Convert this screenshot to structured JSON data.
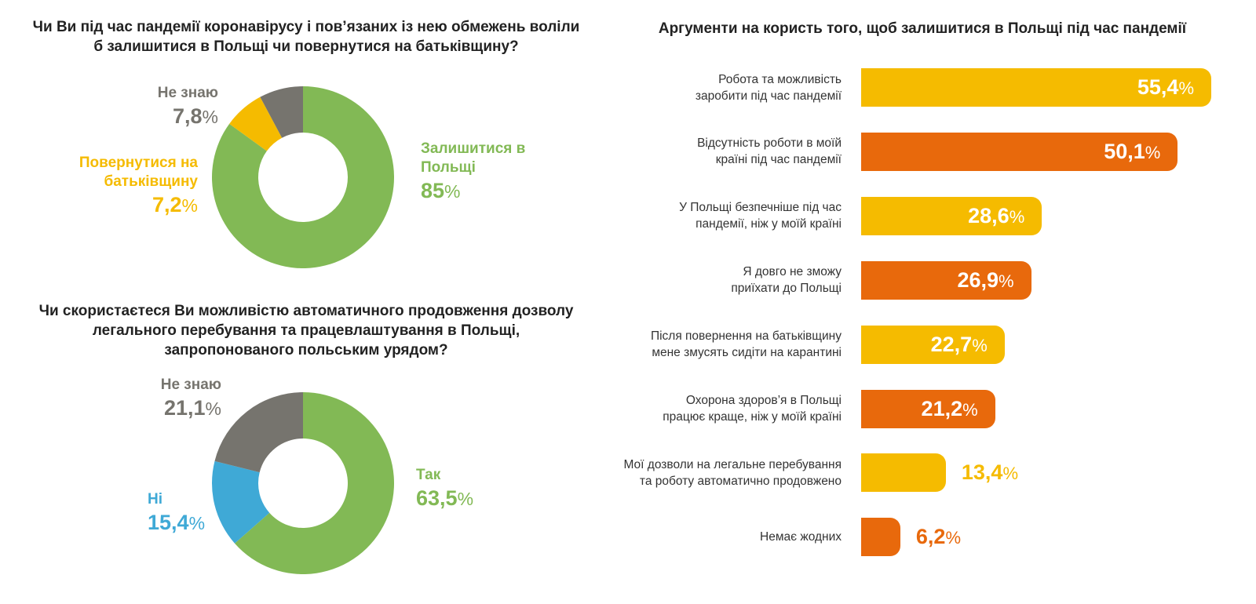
{
  "chart_data": [
    {
      "type": "pie",
      "title": "Чи Ви під час пандемії коронавірусу і пов’язаних із нею обмежень воліли б залишитися в Польщі чи повернутися на батьківщину?",
      "slices": [
        {
          "label": "Залишитися в Польщі",
          "value": 85,
          "value_text": "85",
          "color": "#82b955"
        },
        {
          "label": "Повернутися на батьківщину",
          "value": 7.2,
          "value_text": "7,2",
          "color": "#f5bb00"
        },
        {
          "label": "Не знаю",
          "value": 7.8,
          "value_text": "7,8",
          "color": "#76746e"
        }
      ]
    },
    {
      "type": "pie",
      "title": "Чи скористаєтеся Ви можливістю автоматичного продовження дозволу легального перебування та працевлаштування в Польщі, запропонованого польським урядом?",
      "slices": [
        {
          "label": "Так",
          "value": 63.5,
          "value_text": "63,5",
          "color": "#82b955"
        },
        {
          "label": "Ні",
          "value": 15.4,
          "value_text": "15,4",
          "color": "#3fa9d6"
        },
        {
          "label": "Не знаю",
          "value": 21.1,
          "value_text": "21,1",
          "color": "#76746e"
        }
      ]
    },
    {
      "type": "bar",
      "orientation": "horizontal",
      "title": "Аргументи на користь того, щоб залишитися в Польщі під час пандемії",
      "xlim": [
        0,
        55.4
      ],
      "bars": [
        {
          "label_lines": [
            "Робота та можливість",
            "заробити під час пандемії"
          ],
          "value": 55.4,
          "value_text": "55,4",
          "color": "#f5bb00"
        },
        {
          "label_lines": [
            "Відсутність роботи в моїй",
            "країні під час пандемії"
          ],
          "value": 50.1,
          "value_text": "50,1",
          "color": "#e8690c"
        },
        {
          "label_lines": [
            "У Польщі безпечніше під час",
            "пандемії, ніж у моїй країні"
          ],
          "value": 28.6,
          "value_text": "28,6",
          "color": "#f5bb00"
        },
        {
          "label_lines": [
            "Я довго не зможу",
            "приїхати до Польщі"
          ],
          "value": 26.9,
          "value_text": "26,9",
          "color": "#e8690c"
        },
        {
          "label_lines": [
            "Після повернення на батьківщину",
            "мене змусять сидіти на карантині"
          ],
          "value": 22.7,
          "value_text": "22,7",
          "color": "#f5bb00"
        },
        {
          "label_lines": [
            "Охорона здоров’я в Польщі",
            "працює краще, ніж у моїй країні"
          ],
          "value": 21.2,
          "value_text": "21,2",
          "color": "#e8690c"
        },
        {
          "label_lines": [
            "Мої дозволи на легальне перебування",
            "та роботу автоматично продовжено"
          ],
          "value": 13.4,
          "value_text": "13,4",
          "color": "#f5bb00"
        },
        {
          "label_lines": [
            "Немає жодних"
          ],
          "value": 6.2,
          "value_text": "6,2",
          "color": "#e8690c"
        }
      ]
    }
  ],
  "percent_sign": "%"
}
